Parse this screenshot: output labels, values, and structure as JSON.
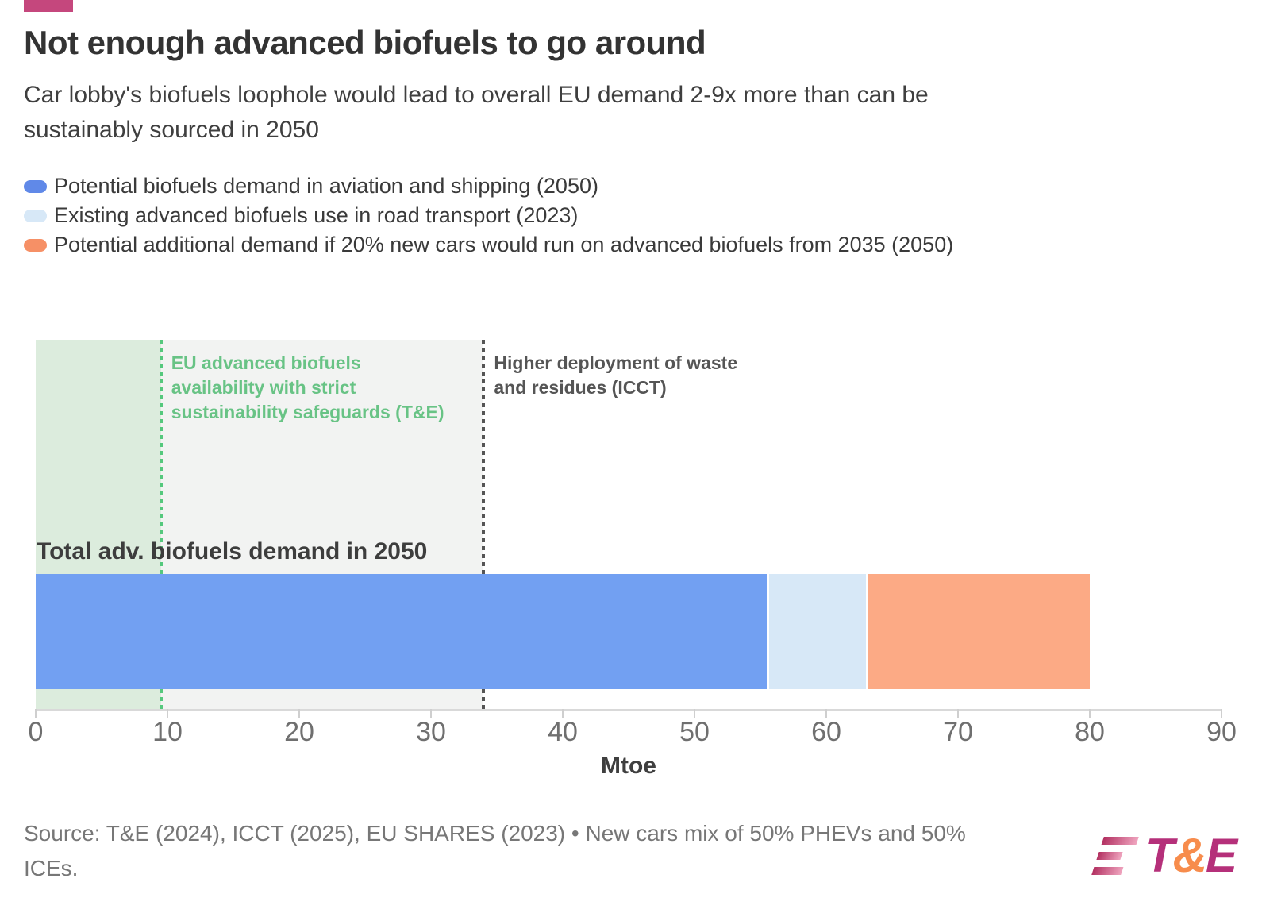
{
  "page": {
    "background": "#ffffff",
    "accent_color": "#c5477d"
  },
  "header": {
    "title": "Not enough advanced biofuels to go around",
    "subtitle_line1": "Car lobby's biofuels loophole would lead to overall EU demand 2-9x more than can be",
    "subtitle_line2": "sustainably sourced in 2050"
  },
  "legend": {
    "items": [
      {
        "label": "Potential biofuels demand in aviation and shipping (2050)",
        "color": "#6089e8"
      },
      {
        "label": "Existing advanced biofuels use in road transport (2023)",
        "color": "#d7e8f7"
      },
      {
        "label": "Potential additional demand if 20% new cars would run on advanced biofuels from 2035 (2050)",
        "color": "#f69066"
      }
    ]
  },
  "chart_data": {
    "type": "bar",
    "orientation": "horizontal",
    "title": "Total adv. biofuels demand in 2050",
    "xlabel": "Mtoe",
    "xlim": [
      0,
      90
    ],
    "ticks": [
      0,
      10,
      20,
      30,
      40,
      50,
      60,
      70,
      80,
      90
    ],
    "grid": false,
    "legend_position": "top-left",
    "categories": [
      "Total adv. biofuels demand in 2050"
    ],
    "series": [
      {
        "name": "Potential biofuels demand in aviation and shipping (2050)",
        "value": 55.5,
        "color": "#72a0f2"
      },
      {
        "name": "Existing advanced biofuels use in road transport (2023)",
        "value": 7.5,
        "color": "#d7e8f7"
      },
      {
        "name": "Potential additional demand if 20% new cars would run on advanced biofuels from 2035 (2050)",
        "value": 17,
        "color": "#fcaa85"
      }
    ],
    "total": 80,
    "reference_lines": [
      {
        "value": 34,
        "line_color": "#555555",
        "band_fill": "#f2f3f2",
        "label_lines": [
          "Higher deployment of waste",
          "and residues (ICCT)"
        ],
        "label_color": "#555555"
      },
      {
        "value": 9.5,
        "line_color": "#55c87d",
        "band_fill": "#dcecdd",
        "label_lines": [
          "EU advanced biofuels",
          "availability with strict",
          "sustainability safeguards (T&E)"
        ],
        "label_color": "#68c385"
      }
    ]
  },
  "footer": {
    "source_line1": "Source: T&E (2024), ICCT (2025), EU SHARES (2023) • New cars mix of 50% PHEVs and 50%",
    "source_line2": "ICEs.",
    "logo": {
      "t": "T",
      "amp": "&",
      "e": "E",
      "magenta": "#b5307a",
      "orange": "#f78c4c"
    }
  }
}
